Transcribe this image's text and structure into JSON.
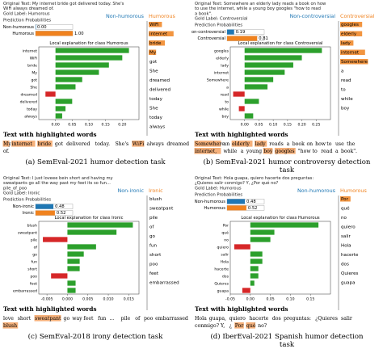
{
  "panels": [
    {
      "id": "a",
      "original_text_label": "Original Text:",
      "original_text": "My internet bride got delivered today. She's WiFi always dreamed of.",
      "gold_label": "Gold Label: Humorous",
      "prediction_label": "Prediction Probabilities",
      "probabilities": [
        {
          "label": "Non-humorous",
          "value": 0.0,
          "color": "#1f77b4"
        },
        {
          "label": "Humorous",
          "value": 1.0,
          "color": "#f0821e"
        }
      ],
      "side_legend": {
        "neg": "Non-humorous",
        "pos": "Humorous",
        "neg_color": "#1f77b4",
        "pos_color": "#f0821e"
      },
      "side_words": [
        "WiFi",
        "internet",
        "bride",
        "My",
        "got",
        "She",
        "dreamed",
        "delivered",
        "today",
        "She",
        "today",
        "always"
      ],
      "side_highlight": [
        true,
        true,
        true,
        true,
        false,
        false,
        false,
        false,
        false,
        false,
        false,
        false
      ],
      "explanation_title": "Local explanation for class Humorous",
      "highlight_title": "Text with highlighted words",
      "highlight_text": [
        {
          "w": "My",
          "h": true
        },
        {
          "w": "internet",
          "h": true
        },
        {
          "w": "bride",
          "h": true
        },
        {
          "w": "got",
          "h": false
        },
        {
          "w": "delivered",
          "h": false
        },
        {
          "w": "today.",
          "h": false
        },
        {
          "w": "She's",
          "h": false
        },
        {
          "w": "WiFi",
          "h": true
        },
        {
          "w": "always",
          "h": false
        },
        {
          "w": "dreamed",
          "h": false
        },
        {
          "w": "of.",
          "h": false
        }
      ],
      "caption": "(a)  SemEval-2021 humor detection task",
      "chart_data": {
        "type": "bar",
        "orientation": "horizontal",
        "title": "Local explanation for class Humorous",
        "categories": [
          "internet",
          "WiFi",
          "bride",
          "My",
          "got",
          "She",
          "dreamed",
          "delivered",
          "today",
          "always"
        ],
        "values": [
          0.22,
          0.2,
          0.16,
          0.13,
          0.08,
          0.06,
          -0.03,
          0.05,
          0.03,
          0.02
        ],
        "xlim": [
          -0.05,
          0.25
        ],
        "xticks": [
          "0.00",
          "0.05",
          "0.10",
          "0.15",
          "0.20"
        ],
        "xtick_values": [
          0.0,
          0.05,
          0.1,
          0.15,
          0.2
        ],
        "pos_color": "#2ca02c",
        "neg_color": "#d62728",
        "grid": false
      }
    },
    {
      "id": "b",
      "original_text_label": "Original Text:",
      "original_text": "Somewhere an elderly lady reads a book on how to use the internet, while a young boy googles \"how to read a book\".",
      "gold_label": "Gold Label: Controversial",
      "prediction_label": "Prediction Probabilities",
      "probabilities": [
        {
          "label": "Non-controversial",
          "value": 0.19,
          "color": "#1f77b4"
        },
        {
          "label": "Controversial",
          "value": 0.81,
          "color": "#f0821e"
        }
      ],
      "side_legend": {
        "neg": "Non-controversial",
        "pos": "Controversial",
        "neg_color": "#1f77b4",
        "pos_color": "#f0821e"
      },
      "side_words": [
        "googles",
        "elderly",
        "lady",
        "internet",
        "Somewhere",
        "a",
        "read",
        "to",
        "while",
        "boy"
      ],
      "side_highlight": [
        true,
        true,
        true,
        true,
        true,
        false,
        false,
        false,
        false,
        false
      ],
      "explanation_title": "Local explanation for class Controversial",
      "highlight_title": "Text with highlighted words",
      "highlight_text": [
        {
          "w": "Somewhere",
          "h": true
        },
        {
          "w": "an",
          "h": false
        },
        {
          "w": "elderly",
          "h": true
        },
        {
          "w": "lady",
          "h": true
        },
        {
          "w": "reads",
          "h": false
        },
        {
          "w": "a",
          "h": false
        },
        {
          "w": "book",
          "h": false
        },
        {
          "w": "on",
          "h": false
        },
        {
          "w": "how",
          "h": false
        },
        {
          "w": "to",
          "h": false
        },
        {
          "w": "use",
          "h": false
        },
        {
          "w": "the",
          "h": false
        },
        {
          "w": "internet,",
          "h": true
        },
        {
          "w": "while",
          "h": false
        },
        {
          "w": "a",
          "h": false
        },
        {
          "w": "young",
          "h": false
        },
        {
          "w": "boy",
          "h": true
        },
        {
          "w": "googles",
          "h": true
        },
        {
          "w": "\"how",
          "h": false
        },
        {
          "w": "to",
          "h": false
        },
        {
          "w": "read",
          "h": false
        },
        {
          "w": "a",
          "h": false
        },
        {
          "w": "book\".",
          "h": false
        }
      ],
      "caption": "(b)  SemEval-2021 humor controversy detection task",
      "chart_data": {
        "type": "bar",
        "orientation": "horizontal",
        "title": "Local explanation for class Controversial",
        "categories": [
          "googles",
          "elderly",
          "lady",
          "internet",
          "Somewhere",
          "a",
          "read",
          "to",
          "while",
          "boy"
        ],
        "values": [
          0.27,
          0.2,
          0.17,
          0.14,
          0.1,
          0.08,
          -0.04,
          0.05,
          -0.02,
          0.03
        ],
        "xlim": [
          -0.05,
          0.3
        ],
        "xticks": [
          "0.00",
          "0.05",
          "0.10",
          "0.15",
          "0.20",
          "0.25"
        ],
        "xtick_values": [
          0.0,
          0.05,
          0.1,
          0.15,
          0.2,
          0.25
        ],
        "pos_color": "#2ca02c",
        "neg_color": "#d62728",
        "grid": false
      }
    },
    {
      "id": "c",
      "original_text_label": "Original Text:",
      "original_text": "I just loveee bein short and having my sweatpants go all the way past my feet its so fun... pile_of_poo",
      "gold_label": "Gold Label: Ironic",
      "prediction_label": "Prediction Probabilities",
      "probabilities": [
        {
          "label": "Non-ironic",
          "value": 0.48,
          "color": "#1f77b4"
        },
        {
          "label": "Ironic",
          "value": 0.52,
          "color": "#f0821e"
        }
      ],
      "side_legend": {
        "neg": "Non-ironic",
        "pos": "Ironic",
        "neg_color": "#1f77b4",
        "pos_color": "#f0821e"
      },
      "side_words": [
        "blush",
        "sweatpant",
        "pile",
        "of",
        "go",
        "fun",
        "short",
        "poo",
        "feet",
        "embarrassed"
      ],
      "side_highlight": [
        false,
        false,
        false,
        false,
        false,
        false,
        false,
        false,
        false,
        false
      ],
      "explanation_title": "Local explanation for class Ironic",
      "highlight_title": "Text with highlighted words",
      "highlight_text": [
        {
          "w": "love",
          "h": false
        },
        {
          "w": "short",
          "h": false
        },
        {
          "w": "sweatpant",
          "h": true
        },
        {
          "w": "go",
          "h": false
        },
        {
          "w": "way",
          "h": false
        },
        {
          "w": "feet",
          "h": false
        },
        {
          "w": "fun",
          "h": false
        },
        {
          "w": "...",
          "h": false
        },
        {
          "w": "pile",
          "h": false
        },
        {
          "w": "of",
          "h": false
        },
        {
          "w": "poo",
          "h": false
        },
        {
          "w": "embarrassed",
          "h": false
        },
        {
          "w": "blush",
          "h": true
        }
      ],
      "caption": "(c)  SemEval-2018 irony detection task",
      "chart_data": {
        "type": "bar",
        "orientation": "horizontal",
        "title": "Local explanation for class Ironic",
        "categories": [
          "blush",
          "sweatpant",
          "pile",
          "of",
          "go",
          "fun",
          "short",
          "poo",
          "feet",
          "embarrassed"
        ],
        "values": [
          0.016,
          0.012,
          -0.006,
          0.007,
          0.004,
          0.003,
          0.003,
          -0.004,
          0.002,
          0.002
        ],
        "xlim": [
          -0.007,
          0.0175
        ],
        "xticks": [
          "-0.005",
          "0.000",
          "0.005",
          "0.010",
          "0.015"
        ],
        "xtick_values": [
          -0.005,
          0.0,
          0.005,
          0.01,
          0.015
        ],
        "pos_color": "#2ca02c",
        "neg_color": "#d62728",
        "grid": false
      }
    },
    {
      "id": "d",
      "original_text_label": "Original Text:",
      "original_text": "Hola guapa, quiero hacerte dos preguntas: ¿Quieres salir conmigo? Y, ¿Por qué no?",
      "gold_label": "Gold Label: Humorous",
      "prediction_label": "Prediction Probabilities",
      "probabilities": [
        {
          "label": "Non-humorous",
          "value": 0.48,
          "color": "#1f77b4"
        },
        {
          "label": "Humorous",
          "value": 0.52,
          "color": "#f0821e"
        }
      ],
      "side_legend": {
        "neg": "Non-humorous",
        "pos": "Humorous",
        "neg_color": "#1f77b4",
        "pos_color": "#f0821e"
      },
      "side_words": [
        "Por",
        "qué",
        "no",
        "quiero",
        "salir",
        "Hola",
        "hacerte",
        "dos",
        "Quieres",
        "guapa"
      ],
      "side_highlight": [
        true,
        false,
        false,
        false,
        false,
        false,
        false,
        false,
        false,
        false
      ],
      "explanation_title": "Local explanation for class Humorous",
      "highlight_title": "Text with highlighted words",
      "highlight_text": [
        {
          "w": "Hola",
          "h": false
        },
        {
          "w": "guapa,",
          "h": false
        },
        {
          "w": "quiero",
          "h": false
        },
        {
          "w": "hacerte",
          "h": false
        },
        {
          "w": "dos",
          "h": false
        },
        {
          "w": "preguntas:",
          "h": false
        },
        {
          "w": "¿Quieres",
          "h": false
        },
        {
          "w": "salir",
          "h": false
        },
        {
          "w": "conmigo?",
          "h": false
        },
        {
          "w": "Y,",
          "h": false
        },
        {
          "w": "¿",
          "h": false
        },
        {
          "w": "Por",
          "h": true
        },
        {
          "w": "qué",
          "h": true
        },
        {
          "w": "no?",
          "h": false
        }
      ],
      "caption": "(d)  IberEval-2021 Spanish humor detection task",
      "chart_data": {
        "type": "bar",
        "orientation": "horizontal",
        "title": "Local explanation for class Humorous",
        "categories": [
          "Por",
          "qué",
          "no",
          "quiero",
          "salir",
          "Hola",
          "hacerte",
          "dos",
          "Quieres",
          "guapa"
        ],
        "values": [
          0.17,
          0.06,
          0.05,
          -0.04,
          0.03,
          0.03,
          0.02,
          0.02,
          0.01,
          -0.02
        ],
        "xlim": [
          -0.05,
          0.2
        ],
        "xticks": [
          "-0.05",
          "0.00",
          "0.05",
          "0.10",
          "0.15"
        ],
        "xtick_values": [
          -0.05,
          0.0,
          0.05,
          0.1,
          0.15
        ],
        "pos_color": "#2ca02c",
        "neg_color": "#d62728",
        "grid": false
      }
    }
  ]
}
